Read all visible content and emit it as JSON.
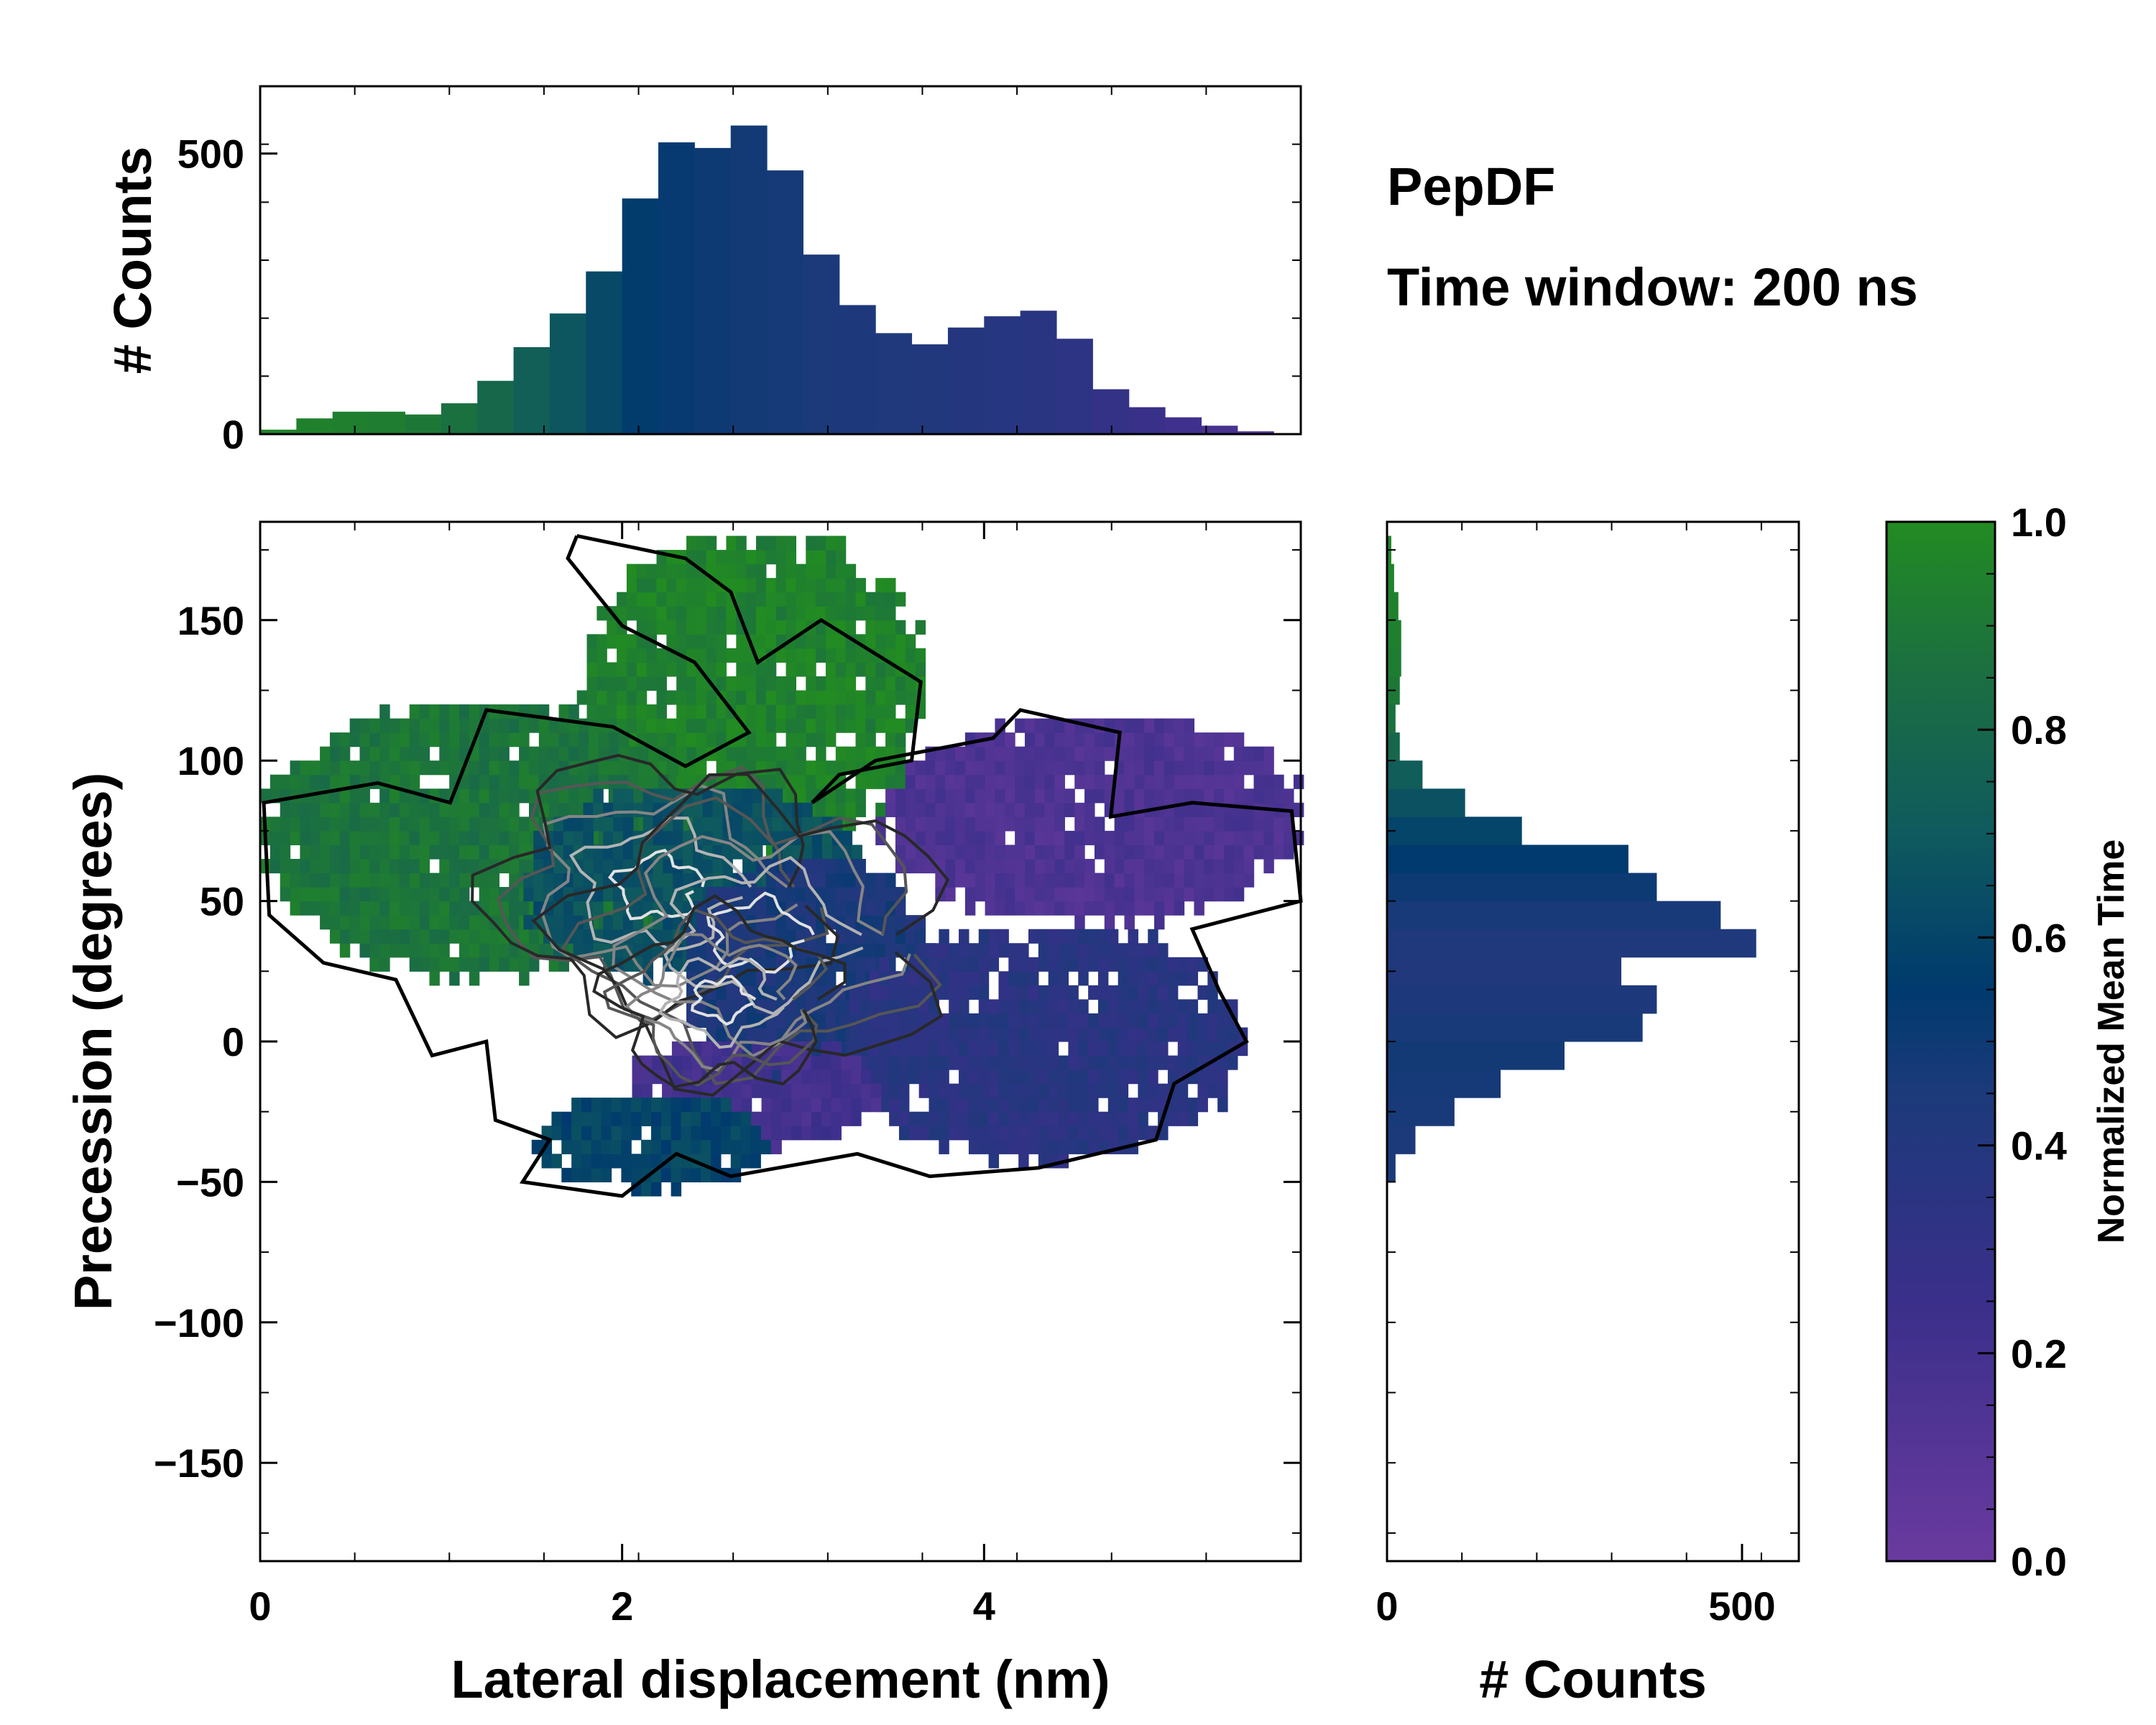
{
  "title": "PepDF",
  "subtitle": "Time window: 200 ns",
  "colormap": {
    "low": "#6a3a9f",
    "mid": "#003a6e",
    "high": "#228b22"
  },
  "chart_data": [
    {
      "type": "bar",
      "panel": "top-histogram",
      "xlabel": "",
      "ylabel": "# Counts",
      "xlim": [
        0,
        5.75
      ],
      "ylim": [
        0,
        620
      ],
      "yticks": [
        0,
        500
      ],
      "bin_centers": [
        0.1,
        0.3,
        0.5,
        0.7,
        0.9,
        1.1,
        1.3,
        1.5,
        1.7,
        1.9,
        2.1,
        2.3,
        2.5,
        2.7,
        2.9,
        3.1,
        3.3,
        3.5,
        3.7,
        3.9,
        4.1,
        4.3,
        4.5,
        4.7,
        4.9,
        5.1,
        5.3,
        5.5
      ],
      "counts": [
        8,
        28,
        40,
        40,
        35,
        55,
        95,
        155,
        215,
        290,
        420,
        520,
        510,
        550,
        470,
        320,
        230,
        180,
        160,
        190,
        210,
        220,
        170,
        80,
        48,
        30,
        15,
        5
      ],
      "mean_time": [
        0.96,
        0.95,
        0.94,
        0.93,
        0.9,
        0.86,
        0.8,
        0.74,
        0.68,
        0.62,
        0.56,
        0.52,
        0.5,
        0.48,
        0.47,
        0.45,
        0.44,
        0.43,
        0.42,
        0.4,
        0.38,
        0.36,
        0.34,
        0.3,
        0.26,
        0.22,
        0.18,
        0.14
      ]
    },
    {
      "type": "heatmap",
      "panel": "main",
      "xlabel": "Lateral displacement (nm)",
      "ylabel": "Precession (degrees)",
      "xlim": [
        0,
        5.75
      ],
      "ylim": [
        -185,
        185
      ],
      "xticks": [
        0,
        2,
        4
      ],
      "yticks": [
        -150,
        -100,
        -50,
        0,
        50,
        100,
        150
      ],
      "xtick_labels": [
        "0",
        "2",
        "4"
      ],
      "ytick_labels": [
        "−150",
        "−100",
        "−50",
        "0",
        "50",
        "100",
        "150"
      ],
      "regions": [
        {
          "name": "upper-green",
          "x": [
            1.75,
            3.65
          ],
          "y": [
            65,
            180
          ],
          "mean_time": 0.95
        },
        {
          "name": "left-green",
          "x": [
            0.0,
            2.4
          ],
          "y": [
            20,
            120
          ],
          "mean_time": 0.88
        },
        {
          "name": "center-teal",
          "x": [
            1.4,
            3.3
          ],
          "y": [
            20,
            90
          ],
          "mean_time": 0.66
        },
        {
          "name": "center-blue",
          "x": [
            2.3,
            3.7
          ],
          "y": [
            -20,
            65
          ],
          "mean_time": 0.45
        },
        {
          "name": "right-purple",
          "x": [
            3.4,
            5.75
          ],
          "y": [
            40,
            115
          ],
          "mean_time": 0.15
        },
        {
          "name": "lower-blue",
          "x": [
            3.2,
            5.4
          ],
          "y": [
            -45,
            40
          ],
          "mean_time": 0.36
        },
        {
          "name": "lower-purple",
          "x": [
            2.0,
            3.4
          ],
          "y": [
            -40,
            0
          ],
          "mean_time": 0.2
        },
        {
          "name": "bottom-teal",
          "x": [
            1.5,
            2.8
          ],
          "y": [
            -55,
            -20
          ],
          "mean_time": 0.6
        }
      ],
      "density_peaks": [
        {
          "x": 2.2,
          "y": 55,
          "strength": 0.9
        },
        {
          "x": 2.75,
          "y": 38,
          "strength": 1.0
        },
        {
          "x": 2.55,
          "y": 15,
          "strength": 0.6
        }
      ]
    },
    {
      "type": "bar",
      "orientation": "horizontal",
      "panel": "right-histogram",
      "xlabel": "# Counts",
      "ylabel": "",
      "xlim": [
        0,
        580
      ],
      "ylim": [
        -185,
        185
      ],
      "xticks": [
        0,
        500
      ],
      "bin_centers": [
        -45,
        -35,
        -25,
        -15,
        -5,
        5,
        15,
        25,
        35,
        45,
        55,
        65,
        75,
        85,
        95,
        105,
        115,
        125,
        135,
        145,
        155,
        165,
        175
      ],
      "counts": [
        12,
        40,
        95,
        160,
        250,
        360,
        380,
        330,
        520,
        470,
        380,
        340,
        190,
        110,
        50,
        18,
        12,
        18,
        20,
        20,
        16,
        10,
        6
      ],
      "mean_time": [
        0.45,
        0.45,
        0.46,
        0.47,
        0.48,
        0.46,
        0.44,
        0.42,
        0.43,
        0.46,
        0.5,
        0.55,
        0.6,
        0.66,
        0.72,
        0.8,
        0.86,
        0.9,
        0.92,
        0.94,
        0.95,
        0.96,
        0.96
      ]
    },
    {
      "type": "colorbar",
      "panel": "colorbar",
      "label": "Normalized Mean Time",
      "range": [
        0.0,
        1.0
      ],
      "ticks": [
        0.0,
        0.2,
        0.4,
        0.6,
        0.8,
        1.0
      ],
      "tick_labels": [
        "0.0",
        "0.2",
        "0.4",
        "0.6",
        "0.8",
        "1.0"
      ]
    }
  ]
}
